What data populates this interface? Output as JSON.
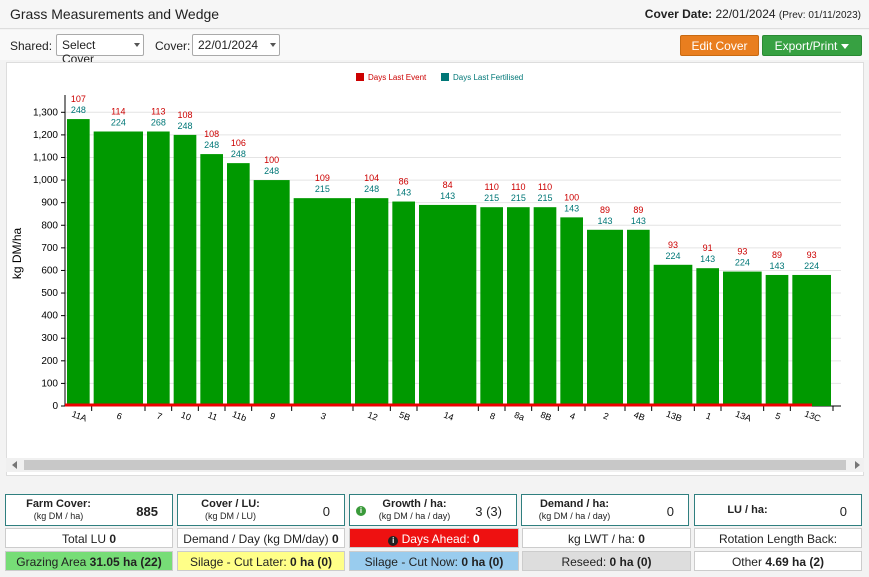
{
  "header": {
    "title": "Grass Measurements and Wedge",
    "cover_date_label": "Cover Date:",
    "cover_date": "22/01/2024",
    "prev": "(Prev: 01/11/2023)"
  },
  "controls": {
    "shared_label": "Shared:",
    "shared_value": "Select Cover",
    "cover_label": "Cover:",
    "cover_value": "22/01/2024",
    "edit_label": "Edit Cover",
    "export_label": "Export/Print"
  },
  "colors": {
    "bar": "#009900",
    "days_last_event": "#cc0000",
    "days_last_fertilised": "#007777"
  },
  "chart_data": {
    "type": "bar",
    "ylabel": "kg DM/ha",
    "ylim": [
      0,
      1350
    ],
    "yticks": [
      0,
      100,
      200,
      300,
      400,
      500,
      600,
      700,
      800,
      900,
      1000,
      1100,
      1200,
      1300
    ],
    "grid": true,
    "legend_position": "top",
    "legend": [
      "Days Last Event",
      "Days Last Fertilised"
    ],
    "bars": [
      {
        "category": "11A",
        "value": 1270,
        "days_last_event": "107",
        "days_last_fertilised": "248",
        "weight": 1
      },
      {
        "category": "6",
        "value": 1215,
        "days_last_event": "114",
        "days_last_fertilised": "224",
        "weight": 2
      },
      {
        "category": "7",
        "value": 1215,
        "days_last_event": "113",
        "days_last_fertilised": "268",
        "weight": 1
      },
      {
        "category": "10",
        "value": 1200,
        "days_last_event": "108",
        "days_last_fertilised": "248",
        "weight": 1
      },
      {
        "category": "11",
        "value": 1115,
        "days_last_event": "108",
        "days_last_fertilised": "248",
        "weight": 1
      },
      {
        "category": "11b",
        "value": 1075,
        "days_last_event": "106",
        "days_last_fertilised": "248",
        "weight": 1
      },
      {
        "category": "9",
        "value": 1000,
        "days_last_event": "100",
        "days_last_fertilised": "248",
        "weight": 1.5
      },
      {
        "category": "3",
        "value": 920,
        "days_last_event": "109",
        "days_last_fertilised": "215",
        "weight": 2.3
      },
      {
        "category": "12",
        "value": 920,
        "days_last_event": "104",
        "days_last_fertilised": "248",
        "weight": 1.4
      },
      {
        "category": "5B",
        "value": 905,
        "days_last_event": "86",
        "days_last_fertilised": "143",
        "weight": 1
      },
      {
        "category": "14",
        "value": 890,
        "days_last_event": "84",
        "days_last_fertilised": "143",
        "weight": 2.3
      },
      {
        "category": "8",
        "value": 880,
        "days_last_event": "110",
        "days_last_fertilised": "215",
        "weight": 1
      },
      {
        "category": "8a",
        "value": 880,
        "days_last_event": "110",
        "days_last_fertilised": "215",
        "weight": 1
      },
      {
        "category": "8B",
        "value": 880,
        "days_last_event": "110",
        "days_last_fertilised": "215",
        "weight": 1
      },
      {
        "category": "4",
        "value": 835,
        "days_last_event": "100",
        "days_last_fertilised": "143",
        "weight": 1
      },
      {
        "category": "2",
        "value": 780,
        "days_last_event": "89",
        "days_last_fertilised": "143",
        "weight": 1.5
      },
      {
        "category": "4B",
        "value": 780,
        "days_last_event": "89",
        "days_last_fertilised": "143",
        "weight": 1
      },
      {
        "category": "13B",
        "value": 625,
        "days_last_event": "93",
        "days_last_fertilised": "224",
        "weight": 1.6
      },
      {
        "category": "1",
        "value": 610,
        "days_last_event": "91",
        "days_last_fertilised": "143",
        "weight": 1
      },
      {
        "category": "13A",
        "value": 595,
        "days_last_event": "93",
        "days_last_fertilised": "224",
        "weight": 1.6
      },
      {
        "category": "5",
        "value": 580,
        "days_last_event": "89",
        "days_last_fertilised": "143",
        "weight": 1
      },
      {
        "category": "13C",
        "value": 580,
        "days_last_event": "93",
        "days_last_fertilised": "224",
        "weight": 1.6
      }
    ]
  },
  "stats": {
    "farm_cover": {
      "label": "Farm Cover:",
      "sub": "(kg DM / ha)",
      "value": "885"
    },
    "cover_lu": {
      "label": "Cover / LU:",
      "sub": "(kg DM / LU)",
      "value": "0"
    },
    "growth": {
      "label": "Growth / ha:",
      "sub": "(kg DM / ha / day)",
      "value": "3 (3)"
    },
    "demand": {
      "label": "Demand / ha:",
      "sub": "(kg DM / ha / day)",
      "value": "0"
    },
    "lu_ha": {
      "label": "LU / ha:",
      "value": "0"
    }
  },
  "row1": {
    "total_lu_label": "Total LU",
    "total_lu": "0",
    "demand_day_label": "Demand / Day (kg DM/day)",
    "demand_day": "0",
    "days_ahead_label": "Days Ahead:",
    "days_ahead": "0",
    "kg_lwt_label": "kg LWT / ha:",
    "kg_lwt": "0",
    "rotation_label": "Rotation Length Back:"
  },
  "row2": {
    "grazing_label": "Grazing Area",
    "grazing_value": "31.05 ha (22)",
    "silage_later_label": "Silage - Cut Later:",
    "silage_later_value": "0 ha (0)",
    "silage_now_label": "Silage - Cut Now:",
    "silage_now_value": "0 ha (0)",
    "reseed_label": "Reseed:",
    "reseed_value": "0 ha (0)",
    "other_label": "Other",
    "other_value": "4.69 ha (2)"
  }
}
